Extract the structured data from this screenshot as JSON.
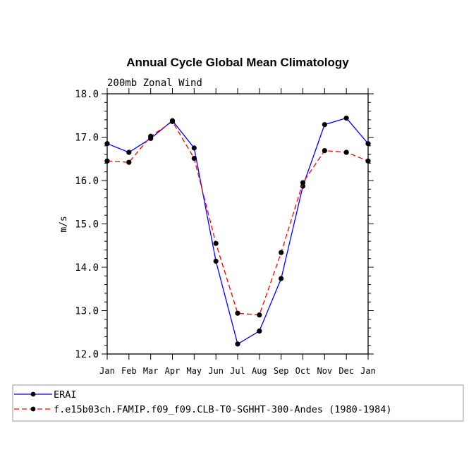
{
  "chart_data": {
    "type": "line",
    "title": "Annual Cycle Global Mean Climatology",
    "subtitle": "200mb Zonal Wind",
    "ylabel": "m/s",
    "xlabel": "",
    "ylim": [
      12.0,
      18.0
    ],
    "yticks": [
      "12.0",
      "13.0",
      "14.0",
      "15.0",
      "16.0",
      "17.0",
      "18.0"
    ],
    "categories": [
      "Jan",
      "Feb",
      "Mar",
      "Apr",
      "May",
      "Jun",
      "Jul",
      "Aug",
      "Sep",
      "Oct",
      "Nov",
      "Dec",
      "Jan"
    ],
    "series": [
      {
        "name": "ERAI",
        "color": "#0000ff",
        "dash": "solid",
        "values": [
          16.85,
          16.65,
          16.97,
          17.38,
          16.75,
          14.14,
          12.23,
          12.53,
          13.74,
          15.87,
          17.29,
          17.44,
          16.85
        ]
      },
      {
        "name": "f.e15b03ch.FAMIP.f09_f09.CLB-T0-SGHHT-300-Andes (1980-1984)",
        "color": "#ff0000",
        "dash": "dashed",
        "values": [
          16.45,
          16.42,
          17.02,
          17.36,
          16.51,
          14.55,
          12.94,
          12.9,
          14.34,
          15.95,
          16.69,
          16.65,
          16.45
        ]
      }
    ],
    "grid": false,
    "legend_position": "bottom"
  }
}
